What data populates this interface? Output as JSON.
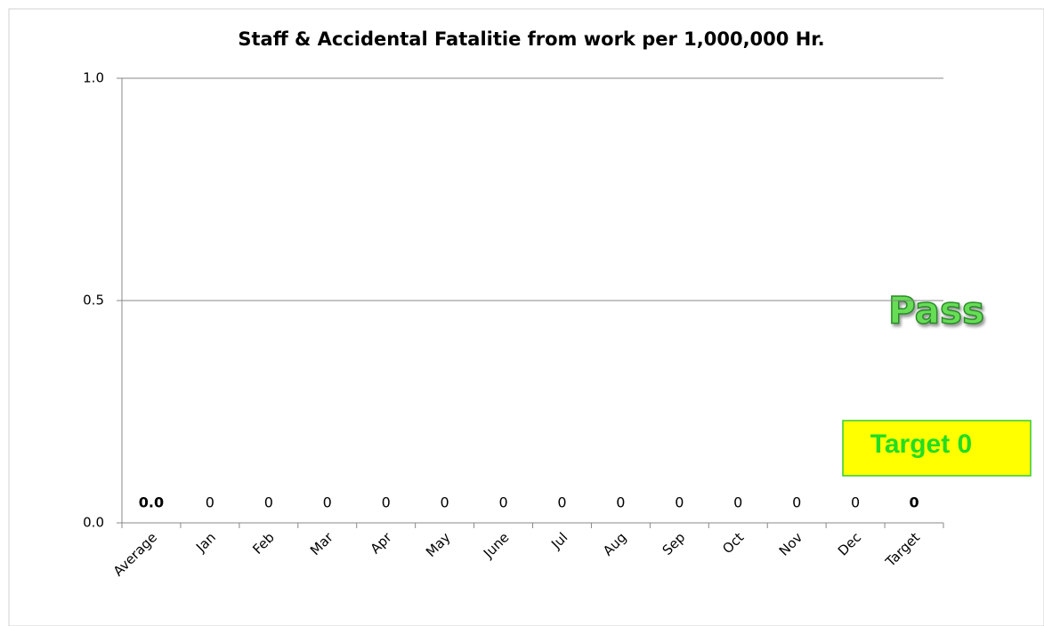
{
  "chart_data": {
    "type": "bar",
    "title": "Staff & Accidental Fatalitie from work per 1,000,000  Hr.",
    "categories": [
      "Average",
      "Jan",
      "Feb",
      "Mar",
      "Apr",
      "May",
      "June",
      "Jul",
      "Aug",
      "Sep",
      "Oct",
      "Nov",
      "Dec",
      "Target"
    ],
    "values": [
      0,
      0,
      0,
      0,
      0,
      0,
      0,
      0,
      0,
      0,
      0,
      0,
      0,
      0
    ],
    "value_labels": [
      "0.0",
      "0",
      "0",
      "0",
      "0",
      "0",
      "0",
      "0",
      "0",
      "0",
      "0",
      "0",
      "0",
      "0"
    ],
    "color": "#4472c4",
    "ylim": [
      0,
      1
    ],
    "yticks": [
      {
        "value": 0,
        "label": "0.0"
      },
      {
        "value": 0.5,
        "label": "0.5"
      },
      {
        "value": 1,
        "label": "1.0"
      }
    ],
    "grid": true,
    "annotations": [
      "Pass",
      "Target 0"
    ]
  }
}
